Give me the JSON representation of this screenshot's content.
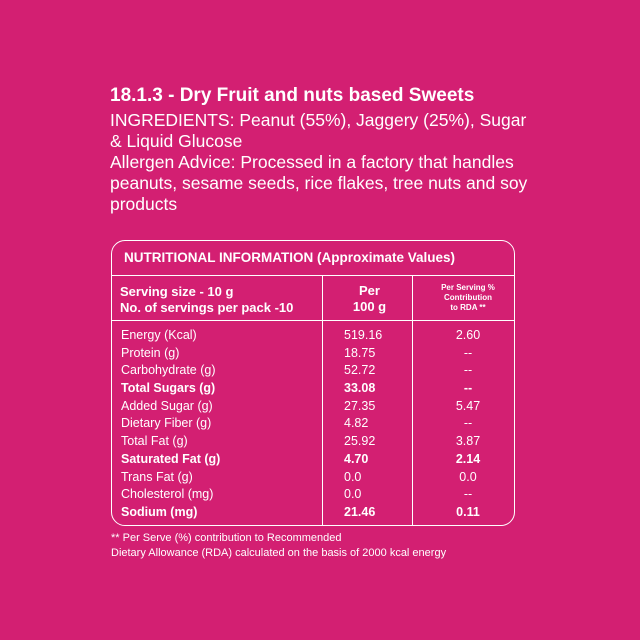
{
  "heading": "18.1.3 - Dry Fruit and nuts based Sweets",
  "ingredients": "INGREDIENTS: Peanut (55%), Jaggery (25%), Sugar & Liquid Glucose",
  "allergen": "Allergen Advice: Processed in a factory that handles peanuts, sesame seeds, rice flakes, tree nuts and soy products",
  "table": {
    "title": "NUTRITIONAL INFORMATION (Approximate Values)",
    "serving_size": "Serving size - 10 g",
    "servings_per_pack": "No. of servings per pack -10",
    "per_label_1": "Per",
    "per_label_2": "100 g",
    "rda_label_1": "Per Serving %",
    "rda_label_2": "Contribution",
    "rda_label_3": "to RDA **",
    "rows": [
      {
        "name": "Energy (Kcal)",
        "per100": "519.16",
        "rda": "2.60",
        "bold": false
      },
      {
        "name": "Protein (g)",
        "per100": "18.75",
        "rda": "--",
        "bold": false
      },
      {
        "name": "Carbohydrate (g)",
        "per100": "52.72",
        "rda": "--",
        "bold": false
      },
      {
        "name": "Total Sugars (g)",
        "per100": "33.08",
        "rda": "--",
        "bold": true
      },
      {
        "name": "Added  Sugar (g)",
        "per100": "27.35",
        "rda": "5.47",
        "bold": false
      },
      {
        "name": "Dietary Fiber (g)",
        "per100": "4.82",
        "rda": "--",
        "bold": false
      },
      {
        "name": "Total Fat (g)",
        "per100": "25.92",
        "rda": "3.87",
        "bold": false
      },
      {
        "name": "Saturated Fat (g)",
        "per100": "4.70",
        "rda": "2.14",
        "bold": true
      },
      {
        "name": "Trans Fat (g)",
        "per100": "0.0",
        "rda": "0.0",
        "bold": false
      },
      {
        "name": "Cholesterol (mg)",
        "per100": "0.0",
        "rda": "--",
        "bold": false
      },
      {
        "name": "Sodium (mg)",
        "per100": "21.46",
        "rda": "0.11",
        "bold": true
      }
    ]
  },
  "footnote_1": "** Per Serve (%) contribution to Recommended",
  "footnote_2": "Dietary Allowance (RDA) calculated on the basis of 2000 kcal energy",
  "colors": {
    "background": "#d31f72",
    "text": "#ffffff"
  }
}
